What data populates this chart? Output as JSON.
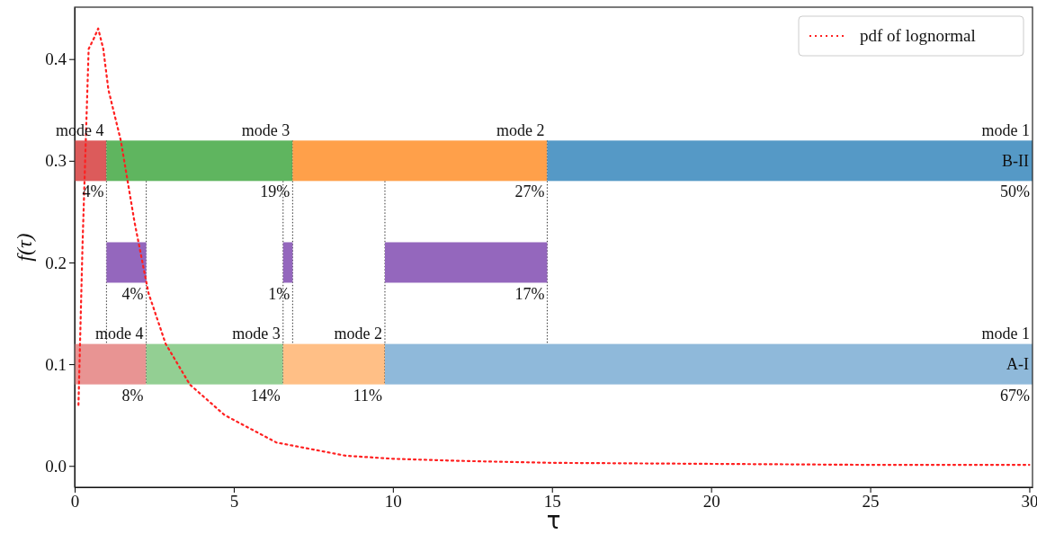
{
  "chart_data": {
    "type": "line",
    "orientation": "horizontal",
    "xlabel": "τ",
    "ylabel": "f(τ)",
    "xlim": [
      0,
      30.1
    ],
    "ylim": [
      -0.021,
      0.451
    ],
    "xticks": [
      0,
      5,
      10,
      15,
      20,
      25,
      30
    ],
    "yticks": [
      {
        "value": 0,
        "label": "0.0"
      },
      {
        "value": 0.1,
        "label": "0.1"
      },
      {
        "value": 0.2,
        "label": "0.2"
      },
      {
        "value": 0.3,
        "label": "0.3"
      },
      {
        "value": 0.4,
        "label": "0.4"
      }
    ],
    "legend": "top right",
    "grid": false,
    "series": [
      {
        "type": "bar",
        "x": [
          0.3
        ],
        "base": [
          0
        ],
        "values": [
          1.0
        ],
        "color": "#dc5b5b"
      },
      {
        "type": "bar",
        "x": [
          0.3
        ],
        "base": [
          1.0
        ],
        "values": [
          5.85
        ],
        "color": "#5fb55f"
      },
      {
        "type": "bar",
        "x": [
          0.3
        ],
        "base": [
          6.85
        ],
        "values": [
          8.0
        ],
        "color": "#ffa04a"
      },
      {
        "name": "B-II",
        "type": "bar",
        "x": [
          0.3
        ],
        "base": [
          14.85
        ],
        "values": [
          15.25
        ],
        "color": "#5599c6"
      },
      {
        "type": "bar",
        "x": [
          0.2
        ],
        "base": [
          1.0
        ],
        "values": [
          1.25
        ],
        "color": "#9467bd"
      },
      {
        "type": "bar",
        "x": [
          0.2
        ],
        "base": [
          6.55
        ],
        "values": [
          0.3
        ],
        "color": "#9467bd"
      },
      {
        "type": "bar",
        "x": [
          0.2
        ],
        "base": [
          9.75
        ],
        "values": [
          5.1
        ],
        "color": "#9467bd"
      },
      {
        "type": "bar",
        "x": [
          0.1
        ],
        "base": [
          0
        ],
        "values": [
          2.25
        ],
        "color": "#e89493"
      },
      {
        "type": "bar",
        "x": [
          0.1
        ],
        "base": [
          2.25
        ],
        "values": [
          4.3
        ],
        "color": "#93cf93"
      },
      {
        "type": "bar",
        "x": [
          0.1
        ],
        "base": [
          6.55
        ],
        "values": [
          3.2
        ],
        "color": "#ffbf86"
      },
      {
        "name": "A-I",
        "type": "bar",
        "x": [
          0.1
        ],
        "base": [
          9.75
        ],
        "values": [
          20.35
        ],
        "color": "#8fb9da"
      },
      {
        "name": "pdf of lognormal",
        "color": "#ff2020",
        "line_style": "dotted",
        "marker": "none",
        "x": [
          0.06,
          0.22,
          0.41,
          0.42,
          0.43,
          0.41,
          0.37,
          0.32,
          0.24,
          0.17,
          0.12,
          0.08,
          0.05,
          0.023,
          0.01,
          0.007,
          0.005,
          0.003,
          0.002,
          0.001,
          0.001
        ],
        "values": [
          0.12,
          0.25,
          0.44,
          0.6,
          0.74,
          0.9,
          1.06,
          1.45,
          1.88,
          2.32,
          2.86,
          3.62,
          4.71,
          6.34,
          8.52,
          10,
          12,
          15,
          20,
          25,
          30
        ]
      }
    ],
    "annotations": [
      {
        "text": "mode 4",
        "x": 1.0,
        "y": 0.32
      },
      {
        "text": "mode 3",
        "x": 6.85,
        "y": 0.32
      },
      {
        "text": "mode 2",
        "x": 14.85,
        "y": 0.32
      },
      {
        "text": "mode 1",
        "x": 30.1,
        "y": 0.32
      },
      {
        "text": "4%",
        "x": 1.0,
        "y": 0.28
      },
      {
        "text": "19%",
        "x": 6.85,
        "y": 0.28
      },
      {
        "text": "27%",
        "x": 14.85,
        "y": 0.28
      },
      {
        "text": "50%",
        "x": 30.1,
        "y": 0.28
      },
      {
        "text": "4%",
        "x": 2.25,
        "y": 0.18
      },
      {
        "text": "1%",
        "x": 6.85,
        "y": 0.18
      },
      {
        "text": "17%",
        "x": 14.85,
        "y": 0.18
      },
      {
        "text": "mode 4",
        "x": 2.25,
        "y": 0.12
      },
      {
        "text": "mode 3",
        "x": 6.55,
        "y": 0.12
      },
      {
        "text": "mode 2",
        "x": 9.75,
        "y": 0.12
      },
      {
        "text": "mode 1",
        "x": 30.1,
        "y": 0.12
      },
      {
        "text": "8%",
        "x": 2.25,
        "y": 0.08
      },
      {
        "text": "14%",
        "x": 6.55,
        "y": 0.08
      },
      {
        "text": "11%",
        "x": 9.75,
        "y": 0.08
      },
      {
        "text": "67%",
        "x": 30.1,
        "y": 0.08
      }
    ]
  }
}
